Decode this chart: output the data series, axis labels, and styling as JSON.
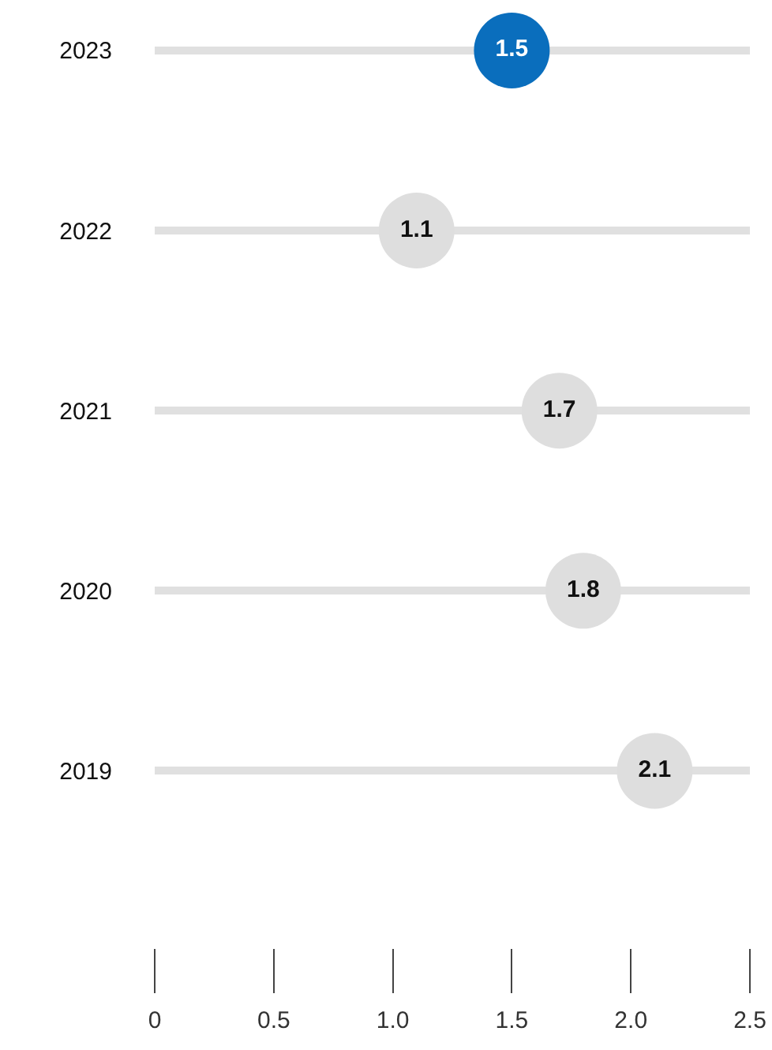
{
  "chart_data": {
    "type": "scatter",
    "orientation": "horizontal",
    "categories": [
      "2023",
      "2022",
      "2021",
      "2020",
      "2019"
    ],
    "values": [
      1.5,
      1.1,
      1.7,
      1.8,
      2.1
    ],
    "colors": [
      "#0a6ebd",
      "#dedede",
      "#dedede",
      "#dedede",
      "#dedede"
    ],
    "data_labels": true,
    "grid": "y",
    "xlim": [
      0,
      2.5
    ],
    "xticks": [
      0,
      0.5,
      {
        "value": 1,
        "label": "1.0"
      },
      1.5,
      {
        "value": 2,
        "label": "2.0"
      },
      2.5
    ]
  }
}
